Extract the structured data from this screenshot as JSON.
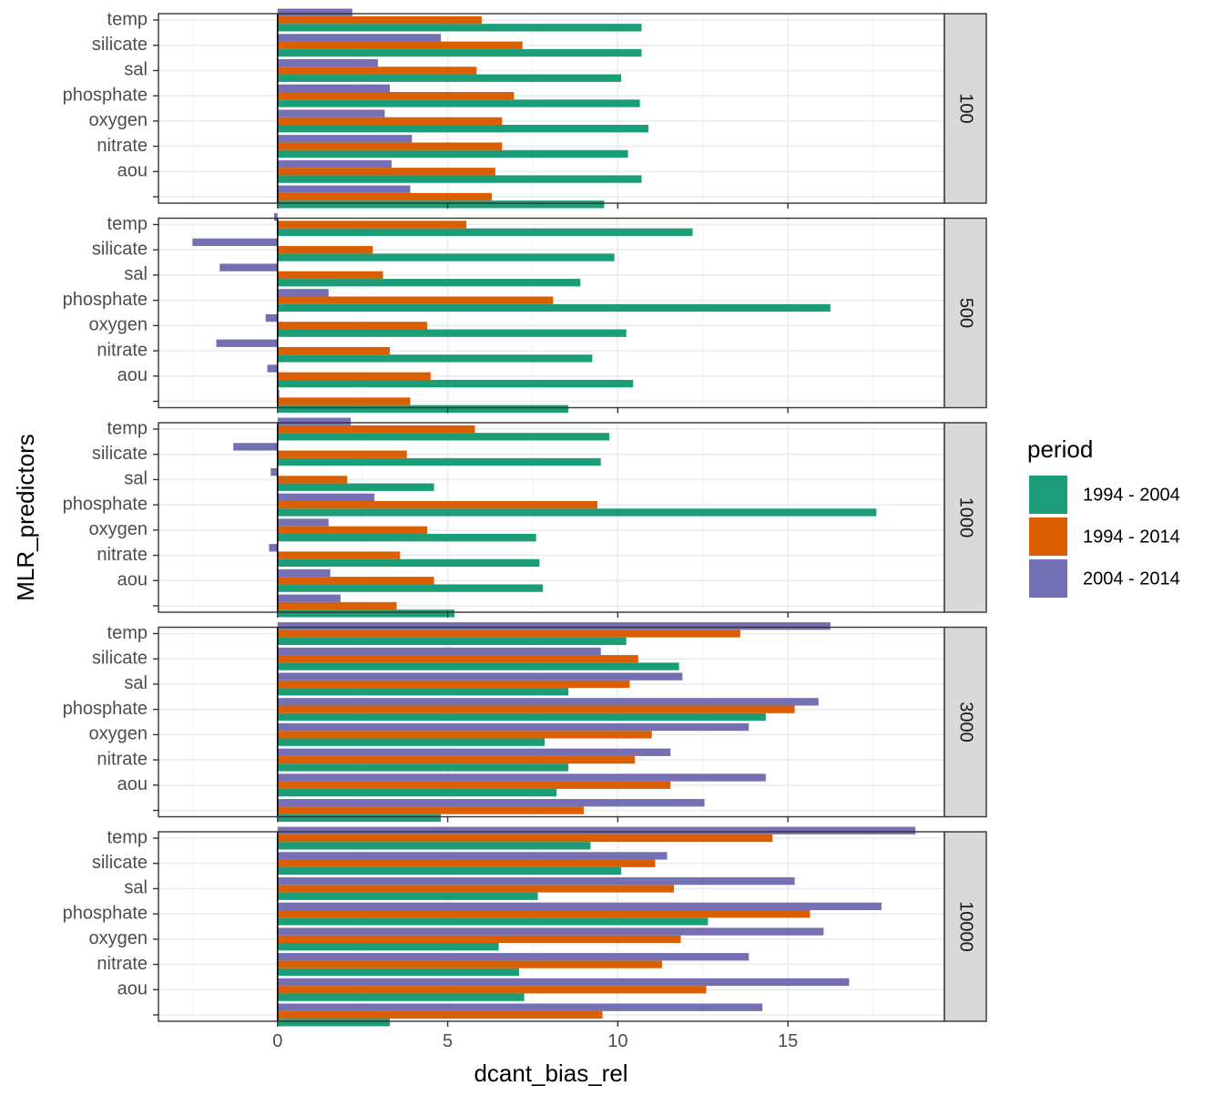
{
  "chart_data": {
    "type": "bar",
    "orientation": "horizontal",
    "xlabel": "dcant_bias_rel",
    "ylabel": "MLR_predictors",
    "xlim": [
      -3.5,
      19.6
    ],
    "x_ticks": [
      0,
      5,
      10,
      15
    ],
    "grid": true,
    "categories": [
      "temp",
      "silicate",
      "sal",
      "phosphate",
      "oxygen",
      "nitrate",
      "aou",
      ""
    ],
    "legend": {
      "title": "period",
      "position": "right",
      "entries": [
        {
          "name": "1994 - 2004",
          "color": "#1B9E77"
        },
        {
          "name": "1994 - 2014",
          "color": "#D95F02"
        },
        {
          "name": "2004 - 2014",
          "color": "#7570B3"
        }
      ]
    },
    "panels": [
      {
        "strip": "100",
        "series": [
          {
            "name": "1994 - 2004",
            "values": [
              10.7,
              10.7,
              10.1,
              10.65,
              10.9,
              10.3,
              10.7,
              9.6
            ]
          },
          {
            "name": "1994 - 2014",
            "values": [
              6.0,
              7.2,
              5.85,
              6.95,
              6.6,
              6.6,
              6.4,
              6.3
            ]
          },
          {
            "name": "2004 - 2014",
            "values": [
              2.2,
              4.8,
              2.95,
              3.3,
              3.15,
              3.95,
              3.35,
              3.9
            ]
          }
        ]
      },
      {
        "strip": "500",
        "series": [
          {
            "name": "1994 - 2004",
            "values": [
              12.2,
              9.9,
              8.9,
              16.25,
              10.25,
              9.25,
              10.45,
              8.55
            ]
          },
          {
            "name": "1994 - 2014",
            "values": [
              5.55,
              2.8,
              3.1,
              8.1,
              4.4,
              3.3,
              4.5,
              3.9
            ]
          },
          {
            "name": "2004 - 2014",
            "values": [
              -0.1,
              -2.5,
              -1.7,
              1.5,
              -0.35,
              -1.8,
              -0.3,
              0.05
            ]
          }
        ]
      },
      {
        "strip": "1000",
        "series": [
          {
            "name": "1994 - 2004",
            "values": [
              9.75,
              9.5,
              4.6,
              17.6,
              7.6,
              7.7,
              7.8,
              5.2
            ]
          },
          {
            "name": "1994 - 2014",
            "values": [
              5.8,
              3.8,
              2.05,
              9.4,
              4.4,
              3.6,
              4.6,
              3.5
            ]
          },
          {
            "name": "2004 - 2014",
            "values": [
              2.15,
              -1.3,
              -0.2,
              2.85,
              1.5,
              -0.25,
              1.55,
              1.85
            ]
          }
        ]
      },
      {
        "strip": "3000",
        "series": [
          {
            "name": "1994 - 2004",
            "values": [
              10.25,
              11.8,
              8.55,
              14.35,
              7.85,
              8.55,
              8.2,
              4.8
            ]
          },
          {
            "name": "1994 - 2014",
            "values": [
              13.6,
              10.6,
              10.35,
              15.2,
              11.0,
              10.5,
              11.55,
              9.0
            ]
          },
          {
            "name": "2004 - 2014",
            "values": [
              16.25,
              9.5,
              11.9,
              15.9,
              13.85,
              11.55,
              14.35,
              12.55
            ]
          }
        ]
      },
      {
        "strip": "10000",
        "series": [
          {
            "name": "1994 - 2004",
            "values": [
              9.2,
              10.1,
              7.65,
              12.65,
              6.5,
              7.1,
              7.25,
              3.3
            ]
          },
          {
            "name": "1994 - 2014",
            "values": [
              14.55,
              11.1,
              11.65,
              15.65,
              11.85,
              11.3,
              12.6,
              9.55
            ]
          },
          {
            "name": "2004 - 2014",
            "values": [
              18.75,
              11.45,
              15.2,
              17.75,
              16.05,
              13.85,
              16.8,
              14.25
            ]
          }
        ]
      }
    ]
  }
}
